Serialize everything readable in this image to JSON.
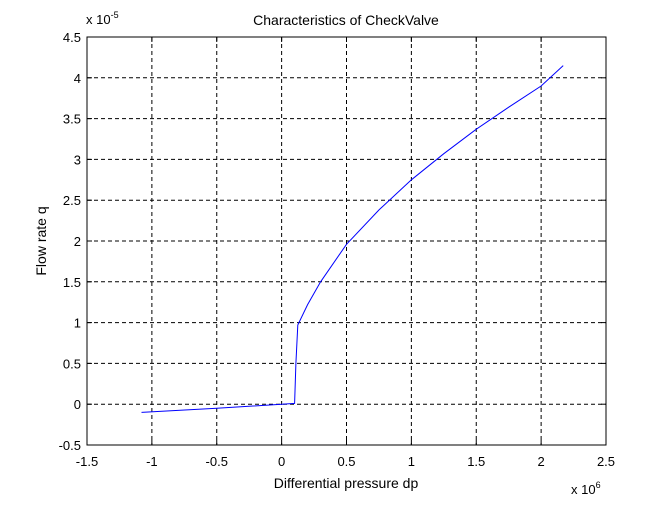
{
  "chart_data": {
    "type": "line",
    "title": "Characteristics of CheckValve",
    "xlabel": "Differential pressure dp",
    "ylabel": "Flow rate q",
    "x_multiplier": {
      "base": "x 10",
      "exponent": "6"
    },
    "y_multiplier": {
      "base": "x 10",
      "exponent": "-5"
    },
    "xlim": [
      -1.5,
      2.5
    ],
    "ylim": [
      -0.5,
      4.5
    ],
    "x_ticks": [
      -1.5,
      -1,
      -0.5,
      0,
      0.5,
      1,
      1.5,
      2,
      2.5
    ],
    "y_ticks": [
      -0.5,
      0,
      0.5,
      1,
      1.5,
      2,
      2.5,
      3,
      3.5,
      4,
      4.5
    ],
    "x_tick_labels": [
      "-1.5",
      "-1",
      "-0.5",
      "0",
      "0.5",
      "1",
      "1.5",
      "2",
      "2.5"
    ],
    "y_tick_labels": [
      "-0.5",
      "0",
      "0.5",
      "1",
      "1.5",
      "2",
      "2.5",
      "3",
      "3.5",
      "4",
      "4.5"
    ],
    "grid": true,
    "grid_style": "dashed",
    "series": [
      {
        "color": "#0000ff",
        "x": [
          -1.08,
          -0.5,
          0.0,
          0.1,
          0.11,
          0.125,
          0.2,
          0.3,
          0.5,
          0.75,
          1.0,
          1.25,
          1.5,
          1.75,
          2.0,
          2.17
        ],
        "y": [
          -0.1,
          -0.05,
          0.0,
          0.01,
          0.5,
          0.97,
          1.22,
          1.5,
          1.96,
          2.38,
          2.75,
          3.07,
          3.37,
          3.64,
          3.9,
          4.15
        ]
      }
    ]
  }
}
